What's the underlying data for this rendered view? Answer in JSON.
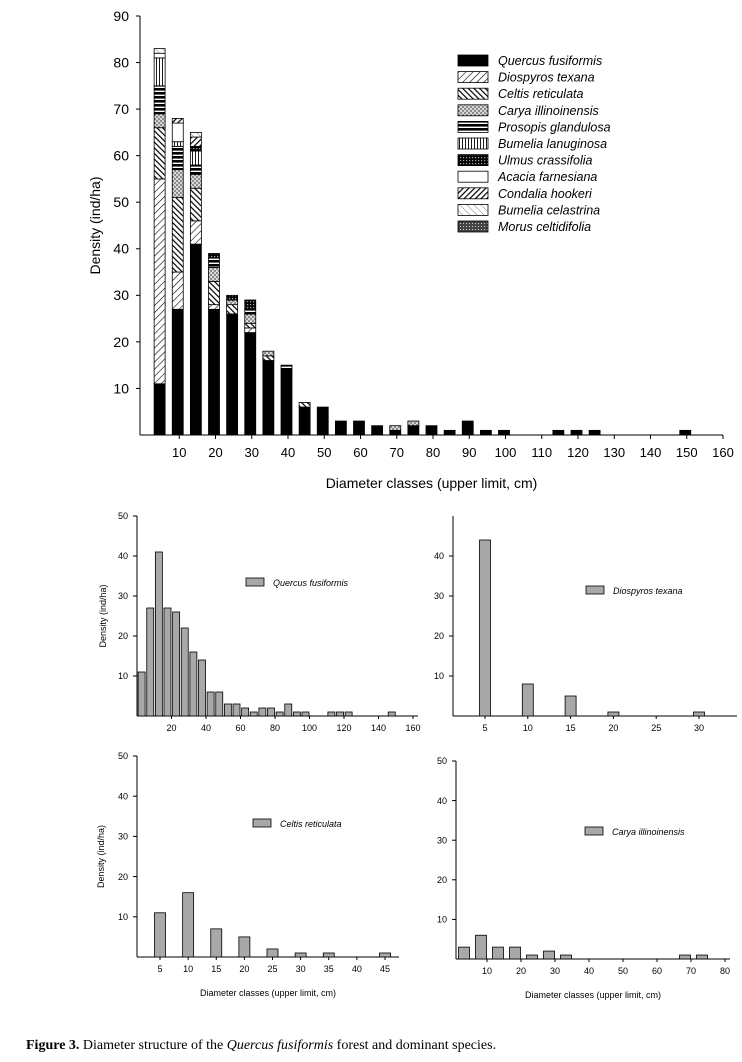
{
  "caption": {
    "label": "Figure 3.",
    "text_before": "Diameter structure of the",
    "species": "Quercus fusiformis",
    "text_after": "forest and dominant species."
  },
  "chart_data": [
    {
      "type": "bar",
      "stacked": true,
      "xlabel": "Diameter classes (upper limit, cm)",
      "ylabel": "Density (ind/ha)",
      "ylim": [
        0,
        90
      ],
      "yticks": [
        10,
        20,
        30,
        40,
        50,
        60,
        70,
        80,
        90
      ],
      "xlim": [
        0,
        160
      ],
      "xticks": [
        10,
        20,
        30,
        40,
        50,
        60,
        70,
        80,
        90,
        100,
        110,
        120,
        130,
        140,
        150,
        160
      ],
      "legend_position": "top-right",
      "categories": [
        5,
        10,
        15,
        20,
        25,
        30,
        35,
        40,
        45,
        50,
        55,
        60,
        65,
        70,
        75,
        80,
        85,
        90,
        95,
        100,
        115,
        120,
        125,
        150
      ],
      "series": [
        {
          "name": "Quercus fusiformis",
          "pattern": "solid",
          "values": [
            11,
            27,
            41,
            27,
            26,
            22,
            16,
            14,
            6,
            6,
            3,
            3,
            2,
            1,
            2,
            2,
            1,
            3,
            1,
            1,
            1,
            1,
            1,
            1
          ]
        },
        {
          "name": "Diospyros texana",
          "pattern": "diag-light",
          "values": [
            44,
            8,
            5,
            1,
            0,
            1,
            0,
            0,
            0,
            0,
            0,
            0,
            0,
            0,
            0,
            0,
            0,
            0,
            0,
            0,
            0,
            0,
            0,
            0
          ]
        },
        {
          "name": "Celtis reticulata",
          "pattern": "diag-heavy-back",
          "values": [
            11,
            16,
            7,
            5,
            2,
            1,
            1,
            0,
            1,
            0,
            0,
            0,
            0,
            0,
            0,
            0,
            0,
            0,
            0,
            0,
            0,
            0,
            0,
            0
          ]
        },
        {
          "name": "Carya illinoinensis",
          "pattern": "dots",
          "values": [
            3,
            6,
            3,
            3,
            1,
            2,
            1,
            0,
            0,
            0,
            0,
            0,
            0,
            1,
            1,
            0,
            0,
            0,
            0,
            0,
            0,
            0,
            0,
            0
          ]
        },
        {
          "name": "Prosopis glandulosa",
          "pattern": "horizontal",
          "values": [
            6,
            5,
            2,
            2,
            0,
            1,
            0,
            1,
            0,
            0,
            0,
            0,
            0,
            0,
            0,
            0,
            0,
            0,
            0,
            0,
            0,
            0,
            0,
            0
          ]
        },
        {
          "name": "Bumelia lanuginosa",
          "pattern": "vertical",
          "values": [
            6,
            1,
            3,
            0,
            0,
            0,
            0,
            0,
            0,
            0,
            0,
            0,
            0,
            0,
            0,
            0,
            0,
            0,
            0,
            0,
            0,
            0,
            0,
            0
          ]
        },
        {
          "name": "Ulmus crassifolia",
          "pattern": "grid",
          "values": [
            0,
            0,
            1,
            1,
            1,
            2,
            0,
            0,
            0,
            0,
            0,
            0,
            0,
            0,
            0,
            0,
            0,
            0,
            0,
            0,
            0,
            0,
            0,
            0
          ]
        },
        {
          "name": "Acacia farnesiana",
          "pattern": "white",
          "values": [
            1,
            4,
            0,
            0,
            0,
            0,
            0,
            0,
            0,
            0,
            0,
            0,
            0,
            0,
            0,
            0,
            0,
            0,
            0,
            0,
            0,
            0,
            0,
            0
          ]
        },
        {
          "name": "Condalia hookeri",
          "pattern": "diag-heavy",
          "values": [
            0,
            1,
            2,
            0,
            0,
            0,
            0,
            0,
            0,
            0,
            0,
            0,
            0,
            0,
            0,
            0,
            0,
            0,
            0,
            0,
            0,
            0,
            0,
            0
          ]
        },
        {
          "name": "Bumelia celastrina",
          "pattern": "diag-light-back",
          "values": [
            1,
            0,
            1,
            0,
            0,
            0,
            0,
            0,
            0,
            0,
            0,
            0,
            0,
            0,
            0,
            0,
            0,
            0,
            0,
            0,
            0,
            0,
            0,
            0
          ]
        },
        {
          "name": "Morus celtidifolia",
          "pattern": "crosshatch",
          "values": [
            0,
            0,
            0,
            0,
            0,
            0,
            0,
            0,
            0,
            0,
            0,
            0,
            0,
            0,
            0,
            0,
            0,
            0,
            0,
            0,
            0,
            0,
            0,
            0
          ]
        }
      ]
    },
    {
      "type": "bar",
      "xlabel": "",
      "ylabel": "Density (ind/ha)",
      "ylim": [
        0,
        50
      ],
      "yticks": [
        10,
        20,
        30,
        40,
        50
      ],
      "xlim": [
        0,
        160
      ],
      "xticks": [
        20,
        40,
        60,
        80,
        100,
        120,
        140,
        160
      ],
      "legend_position": "center-right",
      "series": [
        {
          "name": "Quercus fusiformis",
          "color": "#a8a8a8",
          "x": [
            5,
            10,
            15,
            20,
            25,
            30,
            35,
            40,
            45,
            50,
            55,
            60,
            65,
            70,
            75,
            80,
            85,
            90,
            95,
            100,
            115,
            120,
            125,
            150
          ],
          "values": [
            11,
            27,
            41,
            27,
            26,
            22,
            16,
            14,
            6,
            6,
            3,
            3,
            2,
            1,
            2,
            2,
            1,
            3,
            1,
            1,
            1,
            1,
            1,
            1
          ]
        }
      ]
    },
    {
      "type": "bar",
      "xlabel": "",
      "ylabel": "",
      "ylim": [
        0,
        50
      ],
      "yticks": [
        10,
        20,
        30,
        40
      ],
      "categories": [
        5,
        10,
        15,
        20,
        25,
        30
      ],
      "legend_position": "top-right",
      "series": [
        {
          "name": "Diospyros texana",
          "color": "#a8a8a8",
          "values": [
            44,
            8,
            5,
            1,
            0,
            1
          ]
        }
      ]
    },
    {
      "type": "bar",
      "xlabel": "Diameter classes (upper limit, cm)",
      "ylabel": "Density (ind/ha)",
      "ylim": [
        0,
        50
      ],
      "yticks": [
        10,
        20,
        30,
        40,
        50
      ],
      "categories": [
        5,
        10,
        15,
        20,
        25,
        30,
        35,
        40,
        45
      ],
      "legend_position": "top-right",
      "series": [
        {
          "name": "Celtis reticulata",
          "color": "#a8a8a8",
          "values": [
            11,
            16,
            7,
            5,
            2,
            1,
            1,
            0,
            1
          ]
        }
      ]
    },
    {
      "type": "bar",
      "xlabel": "Diameter classes (upper limit, cm)",
      "ylabel": "",
      "ylim": [
        0,
        50
      ],
      "yticks": [
        10,
        20,
        30,
        40,
        50
      ],
      "xlim": [
        0,
        80
      ],
      "xticks": [
        10,
        20,
        30,
        40,
        50,
        60,
        70,
        80
      ],
      "legend_position": "top-right",
      "series": [
        {
          "name": "Carya illinoinensis",
          "color": "#a8a8a8",
          "x": [
            5,
            10,
            15,
            20,
            25,
            30,
            35,
            70,
            75
          ],
          "values": [
            3,
            6,
            3,
            3,
            1,
            2,
            1,
            1,
            1
          ]
        }
      ]
    }
  ]
}
